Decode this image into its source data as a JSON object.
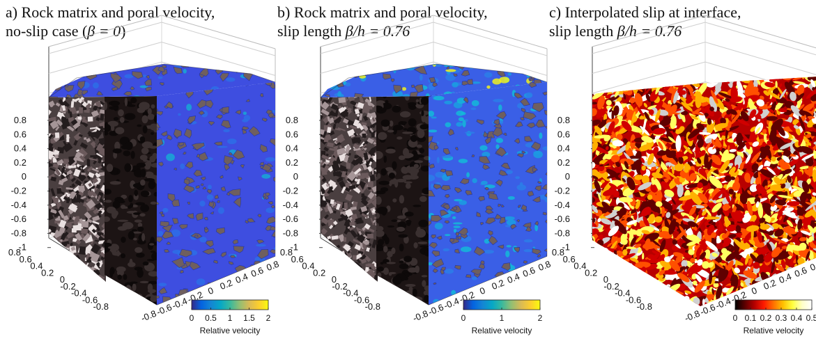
{
  "panels": [
    {
      "id": "a",
      "title_line1": "a) Rock matrix and poral velocity,",
      "title_line2_text": "no-slip case (",
      "title_line2_math": "β = 0",
      "title_line2_end": ")",
      "colorbar": {
        "colormap": "parula",
        "ticks": [
          "0",
          "0.5",
          "1",
          "1.5",
          "2"
        ],
        "label": "Relative velocity",
        "range": [
          0,
          2
        ]
      },
      "rock_color": "#6f5f5e",
      "fluid_color": "#3e4ee0"
    },
    {
      "id": "b",
      "title_line1": "b) Rock matrix and poral velocity,",
      "title_line2_text": "slip length ",
      "title_line2_math": "β/h = 0.76",
      "title_line2_end": "",
      "colorbar": {
        "colormap": "parula",
        "ticks": [
          "0",
          "1",
          "2"
        ],
        "label": "Relative velocity",
        "range": [
          0,
          2
        ]
      },
      "rock_color": "#6f5f5e",
      "fluid_color": "#3a5ee6"
    },
    {
      "id": "c",
      "title_line1": "c) Interpolated slip at interface,",
      "title_line2_text": "slip length ",
      "title_line2_math": "β/h = 0.76",
      "title_line2_end": "",
      "colorbar": {
        "colormap": "hot",
        "ticks": [
          "0",
          "0.1",
          "0.2",
          "0.3",
          "0.4",
          "0.5"
        ],
        "label": "Relative velocity",
        "range": [
          0,
          0.5
        ]
      }
    }
  ],
  "axes": {
    "z_ticks": [
      "0.8",
      "0.6",
      "0.4",
      "0.2",
      "0",
      "-0.2",
      "-0.4",
      "-0.6",
      "-0.8",
      "-1"
    ],
    "x_ticks": [
      "0.8",
      "0.6",
      "0.4",
      "0.2",
      "0",
      "-0.2",
      "-0.4",
      "-0.6",
      "-0.8"
    ],
    "y_ticks": [
      "-0.8",
      "-0.6",
      "-0.4",
      "-0.2",
      "0",
      "0.2",
      "0.4",
      "0.6",
      "0.8"
    ]
  }
}
